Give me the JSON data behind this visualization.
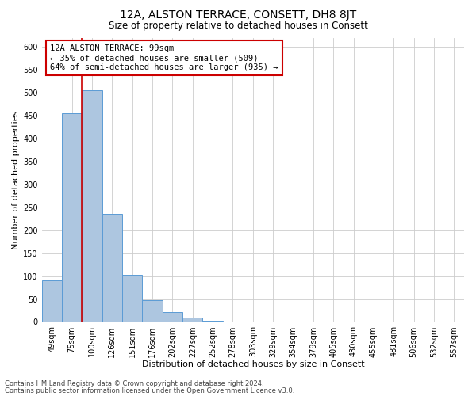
{
  "title": "12A, ALSTON TERRACE, CONSETT, DH8 8JT",
  "subtitle": "Size of property relative to detached houses in Consett",
  "xlabel": "Distribution of detached houses by size in Consett",
  "ylabel": "Number of detached properties",
  "bar_labels": [
    "49sqm",
    "75sqm",
    "100sqm",
    "126sqm",
    "151sqm",
    "176sqm",
    "202sqm",
    "227sqm",
    "252sqm",
    "278sqm",
    "303sqm",
    "329sqm",
    "354sqm",
    "379sqm",
    "405sqm",
    "430sqm",
    "455sqm",
    "481sqm",
    "506sqm",
    "532sqm",
    "557sqm"
  ],
  "bar_values": [
    90,
    455,
    505,
    235,
    103,
    47,
    22,
    10,
    2,
    0,
    1,
    0,
    0,
    0,
    0,
    0,
    0,
    0,
    1,
    0,
    1
  ],
  "bar_color": "#adc6e0",
  "bar_edge_color": "#5b9bd5",
  "vline_color": "#cc0000",
  "ylim": [
    0,
    620
  ],
  "yticks": [
    0,
    50,
    100,
    150,
    200,
    250,
    300,
    350,
    400,
    450,
    500,
    550,
    600
  ],
  "annotation_title": "12A ALSTON TERRACE: 99sqm",
  "annotation_line1": "← 35% of detached houses are smaller (509)",
  "annotation_line2": "64% of semi-detached houses are larger (935) →",
  "annotation_box_color": "#ffffff",
  "annotation_box_edge": "#cc0000",
  "footnote1": "Contains HM Land Registry data © Crown copyright and database right 2024.",
  "footnote2": "Contains public sector information licensed under the Open Government Licence v3.0.",
  "bg_color": "#ffffff",
  "grid_color": "#cccccc",
  "title_fontsize": 10,
  "subtitle_fontsize": 8.5,
  "axis_label_fontsize": 8,
  "tick_fontsize": 7,
  "annotation_fontsize": 7.5,
  "footnote_fontsize": 6
}
